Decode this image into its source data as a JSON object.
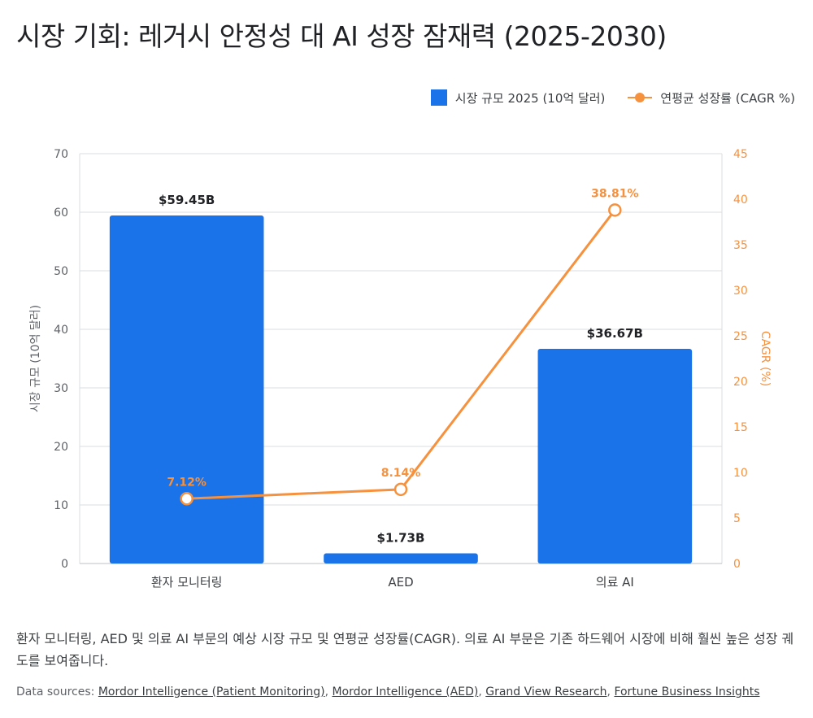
{
  "title": "시장 기회: 레거시 안정성 대 AI 성장 잠재력 (2025-2030)",
  "legend": {
    "bar_label": "시장 규모 2025 (10억 달러)",
    "line_label": "연평균 성장률 (CAGR %)"
  },
  "chart_data": {
    "type": "bar",
    "categories": [
      "환자 모니터링",
      "AED",
      "의료 AI"
    ],
    "series": [
      {
        "name": "시장 규모 2025 (10억 달러)",
        "type": "bar",
        "axis": "left",
        "values": [
          59.45,
          1.73,
          36.67
        ],
        "labels": [
          "$59.45B",
          "$1.73B",
          "$36.67B"
        ],
        "color": "#1a73e8"
      },
      {
        "name": "연평균 성장률 (CAGR %)",
        "type": "line",
        "axis": "right",
        "values": [
          7.12,
          8.14,
          38.81
        ],
        "labels": [
          "7.12%",
          "8.14%",
          "38.81%"
        ],
        "color": "#f6913e"
      }
    ],
    "ylabel": "시장 규모 (10억 달러)",
    "y2label": "CAGR (%)",
    "ylim": [
      0,
      70
    ],
    "y2lim": [
      0,
      45
    ],
    "yticks": [
      0,
      10,
      20,
      30,
      40,
      50,
      60,
      70
    ],
    "y2ticks": [
      0,
      5,
      10,
      15,
      20,
      25,
      30,
      35,
      40,
      45
    ],
    "grid": true,
    "legend_position": "top-right"
  },
  "description": "환자 모니터링, AED 및 의료 AI 부문의 예상 시장 규모 및 연평균 성장률(CAGR). 의료 AI 부문은 기존 하드웨어 시장에 비해 훨씬 높은 성장 궤도를 보여줍니다.",
  "sources": {
    "prefix": "Data sources: ",
    "links": [
      "Mordor Intelligence (Patient Monitoring)",
      "Mordor Intelligence (AED)",
      "Grand View Research",
      "Fortune Business Insights"
    ],
    "separator": ", "
  },
  "colors": {
    "bar": "#1a73e8",
    "line": "#f6913e",
    "grid": "#dadce0",
    "axis_text": "#5f6368"
  }
}
